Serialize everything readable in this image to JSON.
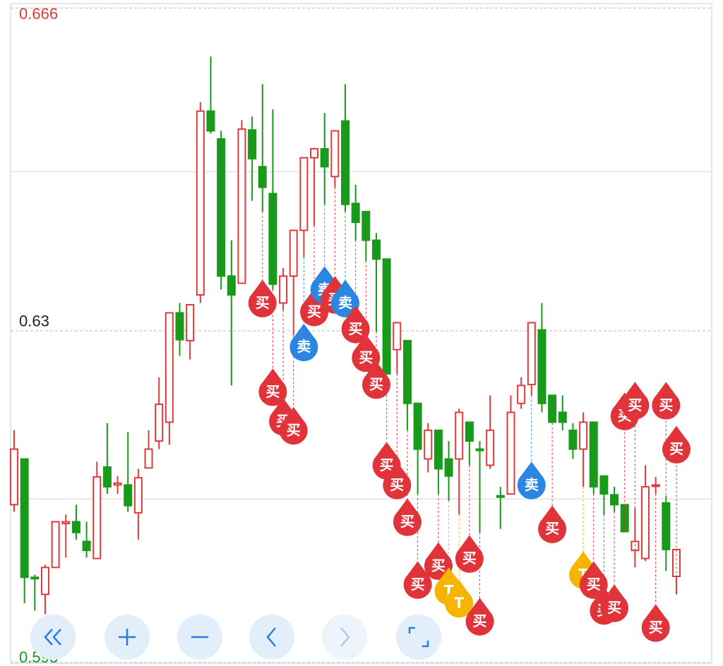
{
  "chart_data": {
    "type": "candlestick",
    "ylim": [
      0.593,
      0.666
    ],
    "yticks": [
      0.666,
      0.63,
      0.593
    ],
    "ytick_colors": [
      "#e03a3a",
      "#222222",
      "#1a9a1a"
    ],
    "up_color": "#e03a3a",
    "down_color": "#1a9a1a",
    "open": [
      0.6106,
      0.6157,
      0.6025,
      0.6006,
      0.6036,
      0.6085,
      0.6087,
      0.6065,
      0.6046,
      0.6148,
      0.6128,
      0.6128,
      0.6097,
      0.6147,
      0.6177,
      0.6198,
      0.632,
      0.6289,
      0.634,
      0.6545,
      0.6514,
      0.6361,
      0.6353,
      0.6524,
      0.6483,
      0.6453,
      0.6331,
      0.6361,
      0.6412,
      0.6493,
      0.6503,
      0.6472,
      0.6534,
      0.6442,
      0.6433,
      0.6401,
      0.638,
      0.6279,
      0.6289,
      0.6219,
      0.6157,
      0.6189,
      0.6157,
      0.6157,
      0.6198,
      0.6168,
      0.615,
      0.6116,
      0.6118,
      0.6219,
      0.624,
      0.6301,
      0.6228,
      0.6209,
      0.6189,
      0.6168,
      0.6198,
      0.6138,
      0.6117,
      0.6106,
      0.6055,
      0.6046,
      0.6128,
      0.6108,
      0.6026
    ],
    "high": [
      0.6189,
      0.6157,
      0.6028,
      0.6039,
      0.6087,
      0.6095,
      0.6106,
      0.6087,
      0.6154,
      0.6197,
      0.6138,
      0.6187,
      0.6146,
      0.6189,
      0.6248,
      0.632,
      0.6331,
      0.6329,
      0.6555,
      0.6606,
      0.6523,
      0.6401,
      0.6535,
      0.6539,
      0.6575,
      0.6547,
      0.637,
      0.6412,
      0.6493,
      0.6504,
      0.6543,
      0.6523,
      0.6575,
      0.6463,
      0.6433,
      0.6409,
      0.638,
      0.6309,
      0.6289,
      0.6219,
      0.6197,
      0.6189,
      0.6177,
      0.6213,
      0.6198,
      0.6177,
      0.6228,
      0.6126,
      0.6228,
      0.6248,
      0.6309,
      0.6331,
      0.6228,
      0.6228,
      0.6197,
      0.6209,
      0.6198,
      0.6138,
      0.6126,
      0.6106,
      0.6102,
      0.615,
      0.6137,
      0.6116,
      0.6056
    ],
    "low": [
      0.6098,
      0.5996,
      0.5988,
      0.5984,
      0.6036,
      0.6047,
      0.6067,
      0.6047,
      0.6046,
      0.6118,
      0.6118,
      0.6098,
      0.6067,
      0.6147,
      0.6168,
      0.6173,
      0.6272,
      0.6268,
      0.6331,
      0.652,
      0.6346,
      0.6239,
      0.6353,
      0.6445,
      0.6433,
      0.6346,
      0.6323,
      0.6295,
      0.6382,
      0.6417,
      0.6441,
      0.646,
      0.6433,
      0.6401,
      0.6378,
      0.6299,
      0.6252,
      0.6252,
      0.6189,
      0.6118,
      0.6142,
      0.6118,
      0.611,
      0.6095,
      0.615,
      0.6075,
      0.6146,
      0.6079,
      0.6118,
      0.6213,
      0.6228,
      0.6209,
      0.6197,
      0.6189,
      0.6157,
      0.6126,
      0.6118,
      0.6095,
      0.6098,
      0.6076,
      0.6036,
      0.6043,
      0.6118,
      0.6032,
      0.6006
    ],
    "close": [
      0.6168,
      0.6025,
      0.6024,
      0.6036,
      0.6087,
      0.6087,
      0.6075,
      0.6055,
      0.6137,
      0.6126,
      0.613,
      0.6105,
      0.6136,
      0.6168,
      0.6218,
      0.632,
      0.629,
      0.6329,
      0.6545,
      0.6523,
      0.6361,
      0.634,
      0.6525,
      0.6492,
      0.646,
      0.6352,
      0.6361,
      0.6412,
      0.6493,
      0.6503,
      0.6483,
      0.6523,
      0.6441,
      0.6421,
      0.6401,
      0.638,
      0.6252,
      0.6309,
      0.6219,
      0.6168,
      0.6189,
      0.6146,
      0.6138,
      0.6209,
      0.6177,
      0.6167,
      0.6189,
      0.6115,
      0.6209,
      0.6239,
      0.6309,
      0.6219,
      0.6198,
      0.6198,
      0.6168,
      0.6198,
      0.6126,
      0.6118,
      0.6106,
      0.6076,
      0.6065,
      0.6126,
      0.6128,
      0.6056,
      0.6056
    ],
    "signals": [
      {
        "label": "买",
        "candle": 24,
        "price": 0.6331,
        "color": "#e0333a"
      },
      {
        "label": "买",
        "candle": 25,
        "price": 0.6232,
        "color": "#e0333a"
      },
      {
        "label": "买",
        "candle": 26,
        "price": 0.6199,
        "color": "#e0333a"
      },
      {
        "label": "买",
        "candle": 27,
        "price": 0.6189,
        "color": "#e0333a"
      },
      {
        "label": "卖",
        "candle": 28,
        "price": 0.6282,
        "color": "#2a86e0"
      },
      {
        "label": "买",
        "candle": 29,
        "price": 0.6321,
        "color": "#e0333a"
      },
      {
        "label": "卖",
        "candle": 30,
        "price": 0.6346,
        "color": "#2a86e0"
      },
      {
        "label": "买",
        "candle": 31,
        "price": 0.6335,
        "color": "#e0333a"
      },
      {
        "label": "卖",
        "candle": 32,
        "price": 0.6331,
        "color": "#2a86e0"
      },
      {
        "label": "买",
        "candle": 33,
        "price": 0.6302,
        "color": "#e0333a"
      },
      {
        "label": "买",
        "candle": 34,
        "price": 0.627,
        "color": "#e0333a"
      },
      {
        "label": "买",
        "candle": 35,
        "price": 0.624,
        "color": "#e0333a"
      },
      {
        "label": "买",
        "candle": 36,
        "price": 0.615,
        "color": "#e0333a"
      },
      {
        "label": "买",
        "candle": 37,
        "price": 0.6128,
        "color": "#e0333a"
      },
      {
        "label": "买",
        "candle": 38,
        "price": 0.6087,
        "color": "#e0333a"
      },
      {
        "label": "买",
        "candle": 39,
        "price": 0.6017,
        "color": "#e0333a"
      },
      {
        "label": "买",
        "candle": 41,
        "price": 0.6038,
        "color": "#e0333a"
      },
      {
        "label": "T",
        "candle": 42,
        "price": 0.601,
        "color": "#f5b400"
      },
      {
        "label": "T",
        "candle": 43,
        "price": 0.5996,
        "color": "#f5b400"
      },
      {
        "label": "买",
        "candle": 44,
        "price": 0.6046,
        "color": "#e0333a"
      },
      {
        "label": "买",
        "candle": 45,
        "price": 0.5976,
        "color": "#e0333a"
      },
      {
        "label": "卖",
        "candle": 50,
        "price": 0.6128,
        "color": "#2a86e0"
      },
      {
        "label": "买",
        "candle": 52,
        "price": 0.6079,
        "color": "#e0333a"
      },
      {
        "label": "T",
        "candle": 55,
        "price": 0.6028,
        "color": "#f5b400"
      },
      {
        "label": "买",
        "candle": 56,
        "price": 0.6017,
        "color": "#e0333a"
      },
      {
        "label": "买",
        "candle": 57,
        "price": 0.5988,
        "color": "#e0333a"
      },
      {
        "label": "买",
        "candle": 58,
        "price": 0.5991,
        "color": "#e0333a"
      },
      {
        "label": "买",
        "candle": 59,
        "price": 0.6205,
        "color": "#e0333a"
      },
      {
        "label": "买",
        "candle": 60,
        "price": 0.6217,
        "color": "#e0333a"
      },
      {
        "label": "买",
        "candle": 62,
        "price": 0.5969,
        "color": "#e0333a"
      },
      {
        "label": "买",
        "candle": 63,
        "price": 0.6217,
        "color": "#e0333a"
      },
      {
        "label": "买",
        "candle": 64,
        "price": 0.6168,
        "color": "#e0333a"
      }
    ]
  }
}
